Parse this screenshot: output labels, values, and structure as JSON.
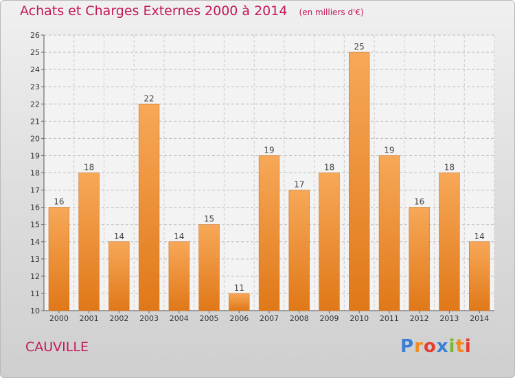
{
  "header": {
    "title": "Achats et Charges Externes 2000 à 2014",
    "unit": "(en milliers d'€)"
  },
  "commune": "CAUVILLE",
  "logo": {
    "letters": [
      "P",
      "r",
      "o",
      "x",
      "i",
      "t",
      "i"
    ],
    "colors": [
      "#3a7fd5",
      "#f28b1e",
      "#e63d2f",
      "#3a7fd5",
      "#77b833",
      "#f28b1e",
      "#e63d2f"
    ]
  },
  "chart_data": {
    "type": "bar",
    "title": "Achats et Charges Externes 2000 à 2014",
    "categories": [
      "2000",
      "2001",
      "2002",
      "2003",
      "2004",
      "2005",
      "2006",
      "2007",
      "2008",
      "2009",
      "2010",
      "2011",
      "2012",
      "2013",
      "2014"
    ],
    "values": [
      16,
      18,
      14,
      22,
      14,
      15,
      11,
      19,
      17,
      18,
      25,
      19,
      16,
      18,
      14
    ],
    "ylim": [
      10,
      26
    ],
    "yticks": [
      10,
      11,
      12,
      13,
      14,
      15,
      16,
      17,
      18,
      19,
      20,
      21,
      22,
      23,
      24,
      25,
      26
    ],
    "grid": true,
    "bar_color": "#f39a45"
  }
}
